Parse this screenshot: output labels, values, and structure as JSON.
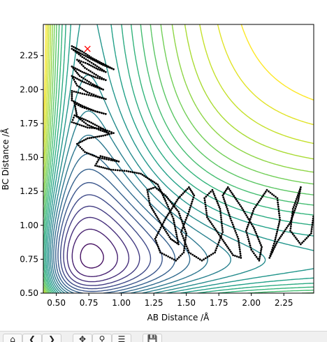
{
  "chart_data": {
    "type": "line",
    "subtype": "contour-plot-with-trajectory",
    "xlabel": "AB Distance /Å",
    "ylabel": "BC Distance /Å",
    "xlim": [
      0.4,
      2.48
    ],
    "ylim": [
      0.5,
      2.48
    ],
    "xticks": [
      0.5,
      0.75,
      1.0,
      1.25,
      1.5,
      1.75,
      2.0,
      2.25
    ],
    "yticks": [
      0.5,
      0.75,
      1.0,
      1.25,
      1.5,
      1.75,
      2.0,
      2.25
    ],
    "grid": false,
    "legend": "none",
    "colormap": "viridis",
    "contour_levels": 24,
    "start_marker": {
      "x": 0.74,
      "y": 2.3,
      "symbol": "x",
      "color": "#ff0000"
    },
    "trajectory_color": "#000000",
    "trajectory": {
      "x": [
        0.62,
        0.7,
        0.78,
        0.86,
        0.94,
        0.86,
        0.78,
        0.7,
        0.62,
        0.7,
        0.8,
        0.88,
        0.82,
        0.74,
        0.66,
        0.72,
        0.82,
        0.88,
        0.8,
        0.7,
        0.62,
        0.68,
        0.78,
        0.86,
        0.8,
        0.7,
        0.62,
        0.66,
        0.74,
        0.82,
        0.88,
        0.8,
        0.7,
        0.62,
        0.62,
        0.7,
        0.8,
        0.88,
        0.8,
        0.7,
        0.64,
        0.66,
        0.74,
        0.84,
        0.9,
        0.84,
        0.74,
        0.64,
        0.62,
        0.74,
        0.86,
        0.94,
        0.86,
        0.74,
        0.66,
        0.72,
        0.82,
        0.92,
        0.98,
        0.92,
        0.84,
        0.8,
        0.92,
        1.04,
        1.15,
        1.28,
        1.34,
        1.4,
        1.44,
        1.38,
        1.3,
        1.22,
        1.2,
        1.26,
        1.34,
        1.44,
        1.5,
        1.48,
        1.42,
        1.3,
        1.26,
        1.34,
        1.44,
        1.52,
        1.56,
        1.52,
        1.46,
        1.52,
        1.62,
        1.72,
        1.78,
        1.76,
        1.7,
        1.64,
        1.66,
        1.76,
        1.86,
        1.92,
        1.9,
        1.84,
        1.78,
        1.82,
        1.92,
        2.02,
        2.08,
        2.06,
        2.0,
        1.96,
        2.02,
        2.12,
        2.2,
        2.22,
        2.18,
        2.14,
        2.2,
        2.3,
        2.36,
        2.38,
        2.32,
        2.3,
        2.38,
        2.46,
        2.48
      ],
      "y": [
        2.32,
        2.28,
        2.23,
        2.19,
        2.15,
        2.18,
        2.22,
        2.26,
        2.3,
        2.24,
        2.18,
        2.13,
        2.15,
        2.19,
        2.22,
        2.16,
        2.1,
        2.07,
        2.09,
        2.13,
        2.17,
        2.1,
        2.04,
        2.0,
        2.02,
        2.06,
        2.1,
        2.03,
        1.98,
        1.95,
        1.93,
        1.95,
        1.97,
        1.99,
        1.92,
        1.88,
        1.84,
        1.82,
        1.84,
        1.87,
        1.9,
        1.8,
        1.74,
        1.7,
        1.68,
        1.72,
        1.77,
        1.81,
        1.76,
        1.72,
        1.71,
        1.68,
        1.66,
        1.64,
        1.6,
        1.54,
        1.5,
        1.48,
        1.47,
        1.49,
        1.51,
        1.44,
        1.41,
        1.4,
        1.38,
        1.3,
        1.18,
        1.05,
        0.86,
        0.9,
        1.02,
        1.15,
        1.26,
        1.28,
        1.22,
        1.1,
        0.94,
        0.8,
        0.74,
        0.8,
        0.9,
        1.05,
        1.2,
        1.28,
        1.22,
        1.1,
        0.95,
        0.8,
        0.74,
        0.8,
        0.95,
        1.12,
        1.26,
        1.2,
        1.06,
        0.92,
        0.78,
        0.76,
        0.9,
        1.05,
        1.22,
        1.28,
        1.14,
        0.98,
        0.84,
        0.74,
        0.82,
        0.96,
        1.12,
        1.26,
        1.2,
        1.04,
        0.88,
        0.76,
        0.88,
        1.02,
        1.18,
        1.28,
        1.12,
        0.96,
        0.86,
        0.94,
        1.08
      ]
    }
  },
  "toolbar": {
    "buttons": [
      {
        "name": "home",
        "glyph": "⌂"
      },
      {
        "name": "back",
        "glyph": "❮"
      },
      {
        "name": "forward",
        "glyph": "❯"
      },
      {
        "name": "pan",
        "glyph": "✥"
      },
      {
        "name": "zoom",
        "glyph": "⚲"
      },
      {
        "name": "subplots",
        "glyph": "☰"
      },
      {
        "name": "save",
        "glyph": "💾"
      }
    ]
  }
}
